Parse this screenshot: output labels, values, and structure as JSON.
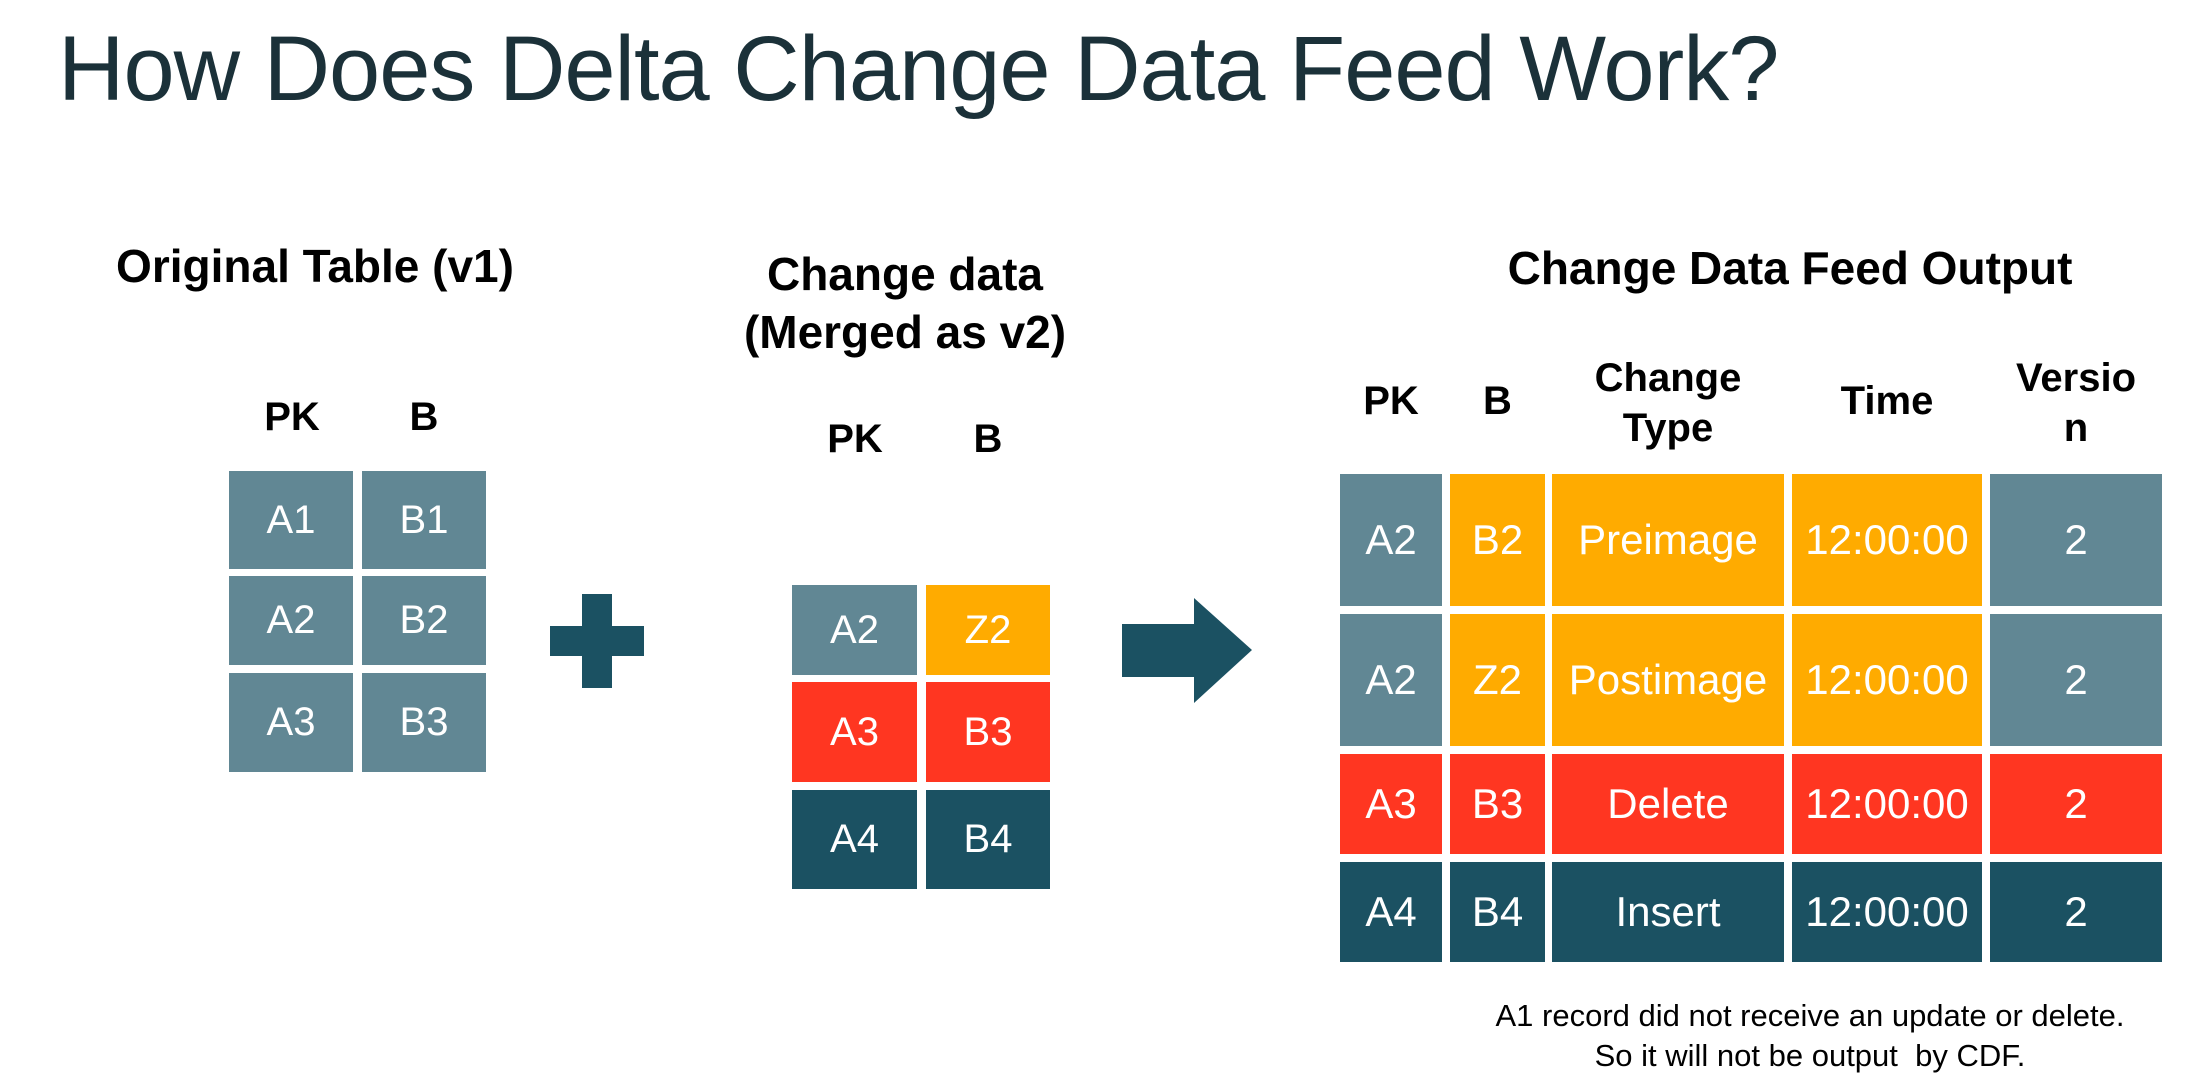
{
  "title": "How Does Delta Change Data Feed Work?",
  "colors": {
    "gray": "#618794",
    "orange": "#FFAB00",
    "red": "#FF3621",
    "navy": "#1B5162",
    "dark_teal": "#1B5162"
  },
  "original_table": {
    "heading": "Original Table (v1)",
    "columns": [
      "PK",
      "B"
    ],
    "rows": [
      {
        "pk": "A1",
        "b": "B1"
      },
      {
        "pk": "A2",
        "b": "B2"
      },
      {
        "pk": "A3",
        "b": "B3"
      }
    ]
  },
  "plus_symbol": "plus-icon",
  "change_data": {
    "heading_line1": "Change data",
    "heading_line2": "(Merged as v2)",
    "columns": [
      "PK",
      "B"
    ],
    "rows": [
      {
        "pk": "A2",
        "b": "Z2"
      },
      {
        "pk": "A3",
        "b": "B3"
      },
      {
        "pk": "A4",
        "b": "B4"
      }
    ]
  },
  "arrow_symbol": "arrow-right-icon",
  "cdf_output": {
    "heading": "Change Data Feed Output",
    "columns": [
      "PK",
      "B",
      "Change\nType",
      "Time",
      "Versio\nn"
    ],
    "rows": [
      {
        "pk": "A2",
        "b": "B2",
        "change_type": "Preimage",
        "time": "12:00:00",
        "version": "2"
      },
      {
        "pk": "A2",
        "b": "Z2",
        "change_type": "Postimage",
        "time": "12:00:00",
        "version": "2"
      },
      {
        "pk": "A3",
        "b": "B3",
        "change_type": "Delete",
        "time": "12:00:00",
        "version": "2"
      },
      {
        "pk": "A4",
        "b": "B4",
        "change_type": "Insert",
        "time": "12:00:00",
        "version": "2"
      }
    ]
  },
  "footnote": {
    "line1": "A1 record did not receive an update or delete.",
    "line2": "So it will not be output  by CDF."
  }
}
